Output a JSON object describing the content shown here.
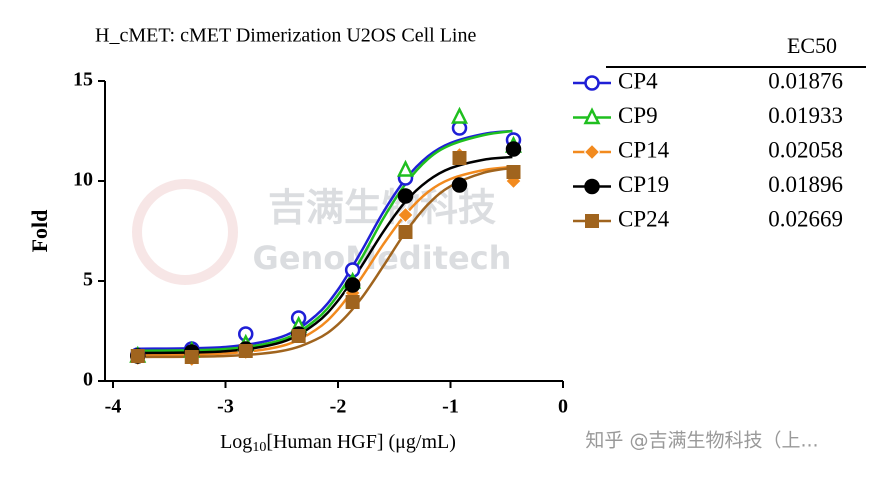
{
  "chart_data": {
    "type": "scatter",
    "title": "H_cMET: cMET Dimerization U2OS Cell Line",
    "x_label": {
      "text": "Log",
      "sub": "10",
      "rest": "[Human HGF] (μg/mL)"
    },
    "y_label": "Fold",
    "xlim": [
      -4,
      0
    ],
    "xticks": [
      -4,
      -3,
      -2,
      -1,
      0
    ],
    "ylim": [
      0,
      15
    ],
    "yticks": [
      0,
      5,
      10,
      15
    ],
    "grid": false,
    "legend_header": "EC50",
    "x": [
      -3.78,
      -3.3,
      -2.82,
      -2.35,
      -1.87,
      -1.4,
      -0.92,
      -0.44
    ],
    "fit_x": [
      -3.8,
      -3.0,
      -2.5,
      -2.2,
      -2.0,
      -1.8,
      -1.6,
      -1.4,
      -1.2,
      -1.0,
      -0.7,
      -0.45
    ],
    "series": [
      {
        "name": "CP4",
        "ec50": 0.01876,
        "color": "#1f1fd6",
        "marker": "open-circle",
        "values": [
          1.3,
          1.6,
          2.35,
          3.15,
          5.55,
          10.15,
          12.65,
          12.05
        ],
        "fit": [
          1.61,
          1.7,
          2.21,
          3.26,
          4.57,
          6.41,
          8.42,
          10.09,
          11.24,
          11.9,
          12.36,
          12.5
        ]
      },
      {
        "name": "CP9",
        "ec50": 0.01933,
        "color": "#1fbf1f",
        "marker": "open-triangle",
        "values": [
          1.25,
          1.5,
          1.85,
          2.75,
          4.95,
          10.55,
          13.2,
          11.75
        ],
        "fit": [
          1.51,
          1.6,
          2.06,
          3.05,
          4.3,
          6.05,
          8.1,
          9.85,
          11.1,
          11.8,
          12.3,
          12.5
        ]
      },
      {
        "name": "CP14",
        "ec50": 0.02058,
        "color": "#f28a1e",
        "marker": "diamond",
        "values": [
          1.15,
          1.1,
          1.45,
          2.25,
          4.4,
          8.3,
          11.3,
          10.0
        ],
        "fit": [
          1.3,
          1.38,
          1.75,
          2.55,
          3.58,
          5.1,
          6.81,
          8.33,
          9.45,
          10.1,
          10.55,
          10.7
        ]
      },
      {
        "name": "CP19",
        "ec50": 0.01896,
        "color": "#000000",
        "marker": "circle",
        "values": [
          1.25,
          1.45,
          1.6,
          2.35,
          4.8,
          9.25,
          9.8,
          11.6
        ],
        "fit": [
          1.4,
          1.49,
          1.94,
          2.87,
          4.02,
          5.66,
          7.44,
          8.97,
          10.01,
          10.64,
          11.07,
          11.2
        ]
      },
      {
        "name": "CP24",
        "ec50": 0.02669,
        "color": "#a0641e",
        "marker": "square",
        "values": [
          1.25,
          1.2,
          1.5,
          2.25,
          3.95,
          7.45,
          11.15,
          10.45
        ],
        "fit": [
          1.2,
          1.25,
          1.5,
          2.06,
          2.83,
          4.08,
          5.72,
          7.44,
          8.83,
          9.74,
          10.42,
          10.65
        ]
      }
    ],
    "watermark": {
      "cn": "吉满生物科技",
      "en": "GenoMeditech"
    },
    "credit": "知乎 @吉满生物科技（上..."
  }
}
